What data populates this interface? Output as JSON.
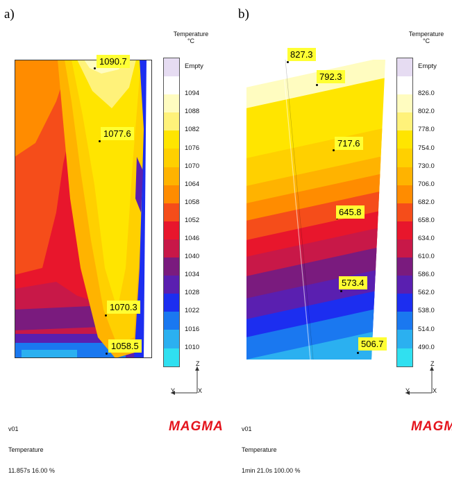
{
  "panels": [
    {
      "letter": "a)",
      "legend_title": [
        "Temperature",
        "°C"
      ],
      "legend_labels": [
        "Empty",
        "1094",
        "1088",
        "1082",
        "1076",
        "1070",
        "1064",
        "1058",
        "1052",
        "1046",
        "1040",
        "1034",
        "1028",
        "1022",
        "1016",
        "1010"
      ],
      "probes": [
        "1090.7",
        "1077.6",
        "1070.3",
        "1058.5"
      ],
      "footer": [
        "v01",
        "Temperature",
        "11.857s 16.00 %"
      ],
      "axis": [
        "Z",
        "Y",
        "X"
      ],
      "logo": "MAGMA"
    },
    {
      "letter": "b)",
      "legend_title": [
        "Temperature",
        "°C"
      ],
      "legend_labels": [
        "Empty",
        "826.0",
        "802.0",
        "778.0",
        "754.0",
        "730.0",
        "706.0",
        "682.0",
        "658.0",
        "634.0",
        "610.0",
        "586.0",
        "562.0",
        "538.0",
        "514.0",
        "490.0"
      ],
      "probes": [
        "827.3",
        "792.3",
        "717.6",
        "645.8",
        "573.4",
        "506.7"
      ],
      "footer": [
        "v01",
        "Temperature",
        "1min 21.0s 100.00 %"
      ],
      "axis": [
        "Z",
        "Y",
        "X"
      ],
      "logo": "MAGMA"
    }
  ],
  "palette": [
    "#ffffff",
    "#fffcc0",
    "#fff27a",
    "#ffe500",
    "#ffd000",
    "#ffb300",
    "#ff8c00",
    "#f54d1a",
    "#e8162c",
    "#c81848",
    "#7a1b7e",
    "#5a1fb0",
    "#1c2ef0",
    "#1a78f0",
    "#2bb0f0",
    "#30e0f0"
  ],
  "empty_color": "#e6dcf2"
}
